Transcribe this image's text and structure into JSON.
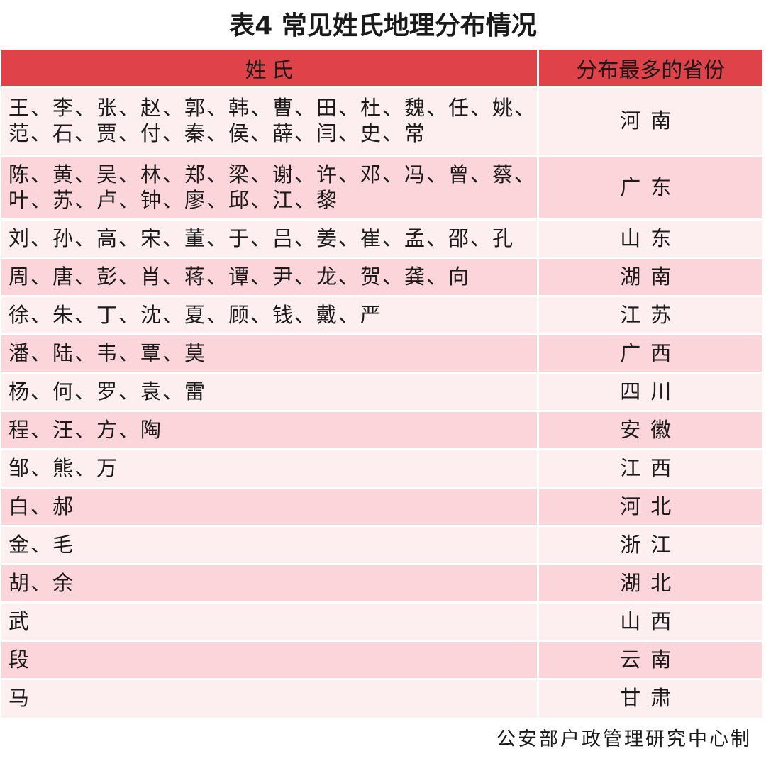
{
  "title": "表4  常见姓氏地理分布情况",
  "headers": {
    "surnames": "姓 氏",
    "province": "分布最多的省份"
  },
  "colors": {
    "header": "#e0424a",
    "row_light": "#fdeeef",
    "row_dark": "#fbd5da"
  },
  "rows": [
    {
      "surnames": "王、李、张、赵、郭、韩、曹、田、杜、魏、任、姚、范、石、贾、付、秦、侯、薛、闫、史、常",
      "province": "河南"
    },
    {
      "surnames": "陈、黄、吴、林、郑、梁、谢、许、邓、冯、曾、蔡、叶、苏、卢、钟、廖、邱、江、黎",
      "province": "广东"
    },
    {
      "surnames": "刘、孙、高、宋、董、于、吕、姜、崔、孟、邵、孔",
      "province": "山东"
    },
    {
      "surnames": "周、唐、彭、肖、蒋、谭、尹、龙、贺、龚、向",
      "province": "湖南"
    },
    {
      "surnames": "徐、朱、丁、沈、夏、顾、钱、戴、严",
      "province": "江苏"
    },
    {
      "surnames": "潘、陆、韦、覃、莫",
      "province": "广西"
    },
    {
      "surnames": "杨、何、罗、袁、雷",
      "province": "四川"
    },
    {
      "surnames": "程、汪、方、陶",
      "province": "安徽"
    },
    {
      "surnames": "邹、熊、万",
      "province": "江西"
    },
    {
      "surnames": "白、郝",
      "province": "河北"
    },
    {
      "surnames": "金、毛",
      "province": "浙江"
    },
    {
      "surnames": "胡、余",
      "province": "湖北"
    },
    {
      "surnames": "武",
      "province": "山西"
    },
    {
      "surnames": "段",
      "province": "云南"
    },
    {
      "surnames": "马",
      "province": "甘肃"
    }
  ],
  "footer": "公安部户政管理研究中心制"
}
